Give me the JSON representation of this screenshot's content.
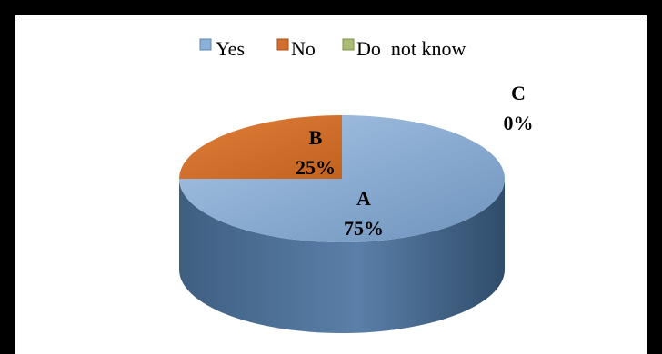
{
  "chart_data": {
    "type": "pie",
    "style": "3d",
    "legend_position": "top",
    "categories": [
      "Yes",
      "No",
      "Do  not know"
    ],
    "values": [
      75,
      25,
      0
    ],
    "slice_letters": [
      "A",
      "B",
      "C"
    ],
    "slice_percent_labels": [
      "75%",
      "25%",
      "0%"
    ],
    "colors": [
      "#8BB1D8",
      "#D26F2C",
      "#A7BB72"
    ]
  }
}
